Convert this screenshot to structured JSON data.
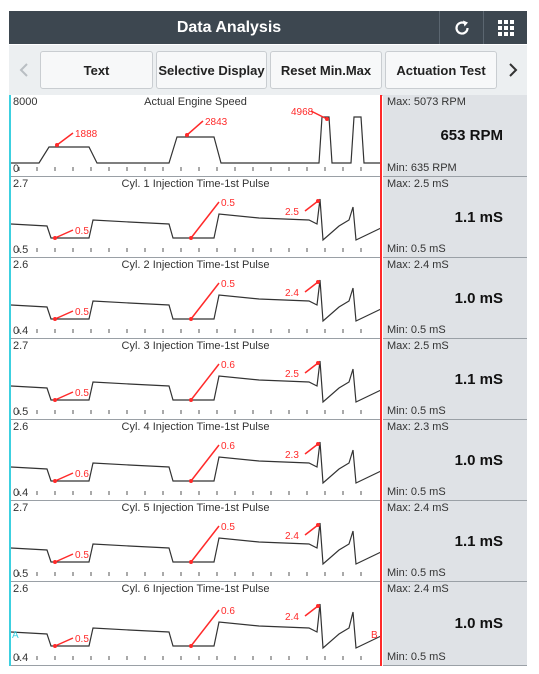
{
  "header": {
    "title": "Data Analysis",
    "refresh_icon": "refresh-icon",
    "grid_icon": "grid-icon"
  },
  "toolbar": {
    "prev_icon": "chevron-left-icon",
    "next_icon": "chevron-right-icon",
    "buttons": [
      {
        "label": "Text"
      },
      {
        "label": "Selective Display"
      },
      {
        "label": "Reset Min.Max"
      },
      {
        "label": "Actuation Test"
      }
    ]
  },
  "colors": {
    "titlebar": "#3d4750",
    "annotation": "#ff2a2a",
    "cursor_left": "#3cd0e0",
    "cursor_right": "#ff2a2a",
    "panel": "#dfe2e6"
  },
  "graphs": [
    {
      "name": "Actual Engine Speed",
      "scale_max": "8000",
      "scale_min": "0",
      "panel_max": "Max: 5073 RPM",
      "current": "653 RPM",
      "panel_min": "Min: 635 RPM",
      "annotations": [
        "1888",
        "2843",
        "4968"
      ]
    },
    {
      "name": "Cyl. 1 Injection Time-1st Pulse",
      "scale_max": "2.7",
      "scale_min": "0.5",
      "panel_max": "Max: 2.5 mS",
      "current": "1.1 mS",
      "panel_min": "Min: 0.5 mS",
      "annotations": [
        "0.5",
        "0.5",
        "2.5"
      ]
    },
    {
      "name": "Cyl. 2 Injection Time-1st Pulse",
      "scale_max": "2.6",
      "scale_min": "0.4",
      "panel_max": "Max: 2.4 mS",
      "current": "1.0 mS",
      "panel_min": "Min: 0.5 mS",
      "annotations": [
        "0.5",
        "0.5",
        "2.4"
      ]
    },
    {
      "name": "Cyl. 3 Injection Time-1st Pulse",
      "scale_max": "2.7",
      "scale_min": "0.5",
      "panel_max": "Max: 2.5 mS",
      "current": "1.1 mS",
      "panel_min": "Min: 0.5 mS",
      "annotations": [
        "0.5",
        "0.6",
        "2.5"
      ]
    },
    {
      "name": "Cyl. 4 Injection Time-1st Pulse",
      "scale_max": "2.6",
      "scale_min": "0.4",
      "panel_max": "Max: 2.3 mS",
      "current": "1.0 mS",
      "panel_min": "Min: 0.5 mS",
      "annotations": [
        "0.6",
        "0.6",
        "2.3"
      ]
    },
    {
      "name": "Cyl. 5 Injection Time-1st Pulse",
      "scale_max": "2.7",
      "scale_min": "0.5",
      "panel_max": "Max: 2.4 mS",
      "current": "1.1 mS",
      "panel_min": "Min: 0.5 mS",
      "annotations": [
        "0.5",
        "0.5",
        "2.4"
      ]
    },
    {
      "name": "Cyl. 6 Injection Time-1st Pulse",
      "scale_max": "2.6",
      "scale_min": "0.4",
      "panel_max": "Max: 2.4 mS",
      "current": "1.0 mS",
      "panel_min": "Min: 0.5 mS",
      "annotations": [
        "0.5",
        "0.6",
        "2.4"
      ],
      "cursor_left_label": "A",
      "cursor_right_label": "B"
    }
  ]
}
